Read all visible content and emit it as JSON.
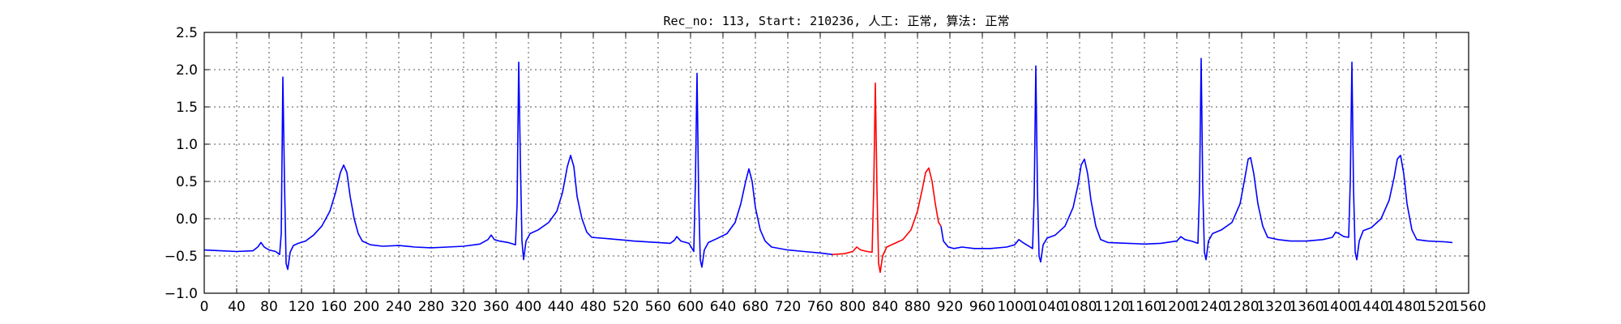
{
  "chart_data": {
    "type": "line",
    "title": "Rec_no: 113, Start: 210236, 人工: 正常, 算法: 正常",
    "xlabel": "",
    "ylabel": "",
    "xlim": [
      0,
      1560
    ],
    "ylim": [
      -1.0,
      2.5
    ],
    "grid": true,
    "yticks": [
      "2.5",
      "2.0",
      "1.5",
      "1.0",
      "0.5",
      "0.0",
      "−0.5",
      "−1.0"
    ],
    "ytick_values": [
      2.5,
      2.0,
      1.5,
      1.0,
      0.5,
      0.0,
      -0.5,
      -1.0
    ],
    "xtick_values": [
      0,
      40,
      80,
      120,
      160,
      200,
      240,
      280,
      320,
      360,
      400,
      440,
      480,
      520,
      560,
      600,
      640,
      680,
      720,
      760,
      800,
      840,
      880,
      920,
      960,
      1000,
      1040,
      1080,
      1120,
      1160,
      1200,
      1240,
      1280,
      1320,
      1360,
      1400,
      1440,
      1480,
      1520,
      1560
    ],
    "xtick_labels": [
      "0",
      "40",
      "80",
      "120",
      "160",
      "200",
      "240",
      "280",
      "320",
      "360",
      "400",
      "440",
      "480",
      "520",
      "560",
      "600",
      "640",
      "680",
      "720",
      "760",
      "800",
      "840",
      "880",
      "920",
      "960",
      "1000",
      "1040",
      "1080",
      "1120",
      "1160",
      "1200",
      "1240",
      "1280",
      "1320",
      "1360",
      "1400",
      "1440",
      "1480",
      "1520",
      "1560"
    ],
    "series": [
      {
        "color": "#0000ff",
        "points": [
          [
            0,
            -0.42
          ],
          [
            20,
            -0.43
          ],
          [
            40,
            -0.44
          ],
          [
            60,
            -0.43
          ],
          [
            66,
            -0.38
          ],
          [
            70,
            -0.32
          ],
          [
            74,
            -0.38
          ],
          [
            80,
            -0.42
          ],
          [
            88,
            -0.44
          ],
          [
            93,
            -0.48
          ],
          [
            95,
            -0.2
          ],
          [
            97,
            1.9
          ],
          [
            99,
            0.5
          ],
          [
            101,
            -0.6
          ],
          [
            103,
            -0.68
          ],
          [
            106,
            -0.45
          ],
          [
            110,
            -0.36
          ],
          [
            116,
            -0.33
          ],
          [
            125,
            -0.3
          ],
          [
            135,
            -0.22
          ],
          [
            145,
            -0.1
          ],
          [
            155,
            0.1
          ],
          [
            162,
            0.35
          ],
          [
            168,
            0.62
          ],
          [
            172,
            0.72
          ],
          [
            176,
            0.62
          ],
          [
            180,
            0.3
          ],
          [
            185,
            0.0
          ],
          [
            190,
            -0.2
          ],
          [
            195,
            -0.3
          ],
          [
            205,
            -0.35
          ],
          [
            220,
            -0.37
          ],
          [
            240,
            -0.36
          ],
          [
            260,
            -0.38
          ],
          [
            280,
            -0.39
          ],
          [
            300,
            -0.38
          ],
          [
            320,
            -0.37
          ],
          [
            340,
            -0.34
          ],
          [
            350,
            -0.28
          ],
          [
            354,
            -0.22
          ],
          [
            358,
            -0.28
          ],
          [
            364,
            -0.3
          ],
          [
            375,
            -0.32
          ],
          [
            384,
            -0.35
          ],
          [
            386,
            0.2
          ],
          [
            388,
            2.1
          ],
          [
            390,
            0.8
          ],
          [
            392,
            -0.3
          ],
          [
            394,
            -0.55
          ],
          [
            397,
            -0.3
          ],
          [
            402,
            -0.2
          ],
          [
            412,
            -0.15
          ],
          [
            425,
            -0.05
          ],
          [
            435,
            0.1
          ],
          [
            442,
            0.35
          ],
          [
            448,
            0.7
          ],
          [
            452,
            0.85
          ],
          [
            456,
            0.7
          ],
          [
            460,
            0.3
          ],
          [
            466,
            0.0
          ],
          [
            472,
            -0.18
          ],
          [
            478,
            -0.25
          ],
          [
            500,
            -0.27
          ],
          [
            530,
            -0.3
          ],
          [
            560,
            -0.32
          ],
          [
            575,
            -0.33
          ],
          [
            580,
            -0.29
          ],
          [
            583,
            -0.24
          ],
          [
            588,
            -0.3
          ],
          [
            598,
            -0.33
          ],
          [
            604,
            -0.44
          ],
          [
            606,
            0.5
          ],
          [
            608,
            1.95
          ],
          [
            610,
            0.3
          ],
          [
            612,
            -0.55
          ],
          [
            614,
            -0.65
          ],
          [
            617,
            -0.42
          ],
          [
            622,
            -0.32
          ],
          [
            632,
            -0.27
          ],
          [
            645,
            -0.2
          ],
          [
            655,
            -0.05
          ],
          [
            662,
            0.2
          ],
          [
            668,
            0.5
          ],
          [
            672,
            0.67
          ],
          [
            676,
            0.5
          ],
          [
            680,
            0.15
          ],
          [
            686,
            -0.15
          ],
          [
            692,
            -0.3
          ],
          [
            700,
            -0.38
          ],
          [
            720,
            -0.42
          ],
          [
            740,
            -0.44
          ],
          [
            760,
            -0.46
          ],
          [
            775,
            -0.48
          ]
        ]
      },
      {
        "color": "#ff0000",
        "points": [
          [
            775,
            -0.48
          ],
          [
            790,
            -0.47
          ],
          [
            800,
            -0.44
          ],
          [
            805,
            -0.38
          ],
          [
            810,
            -0.42
          ],
          [
            818,
            -0.44
          ],
          [
            824,
            -0.45
          ],
          [
            826,
            0.4
          ],
          [
            828,
            1.82
          ],
          [
            830,
            0.4
          ],
          [
            832,
            -0.6
          ],
          [
            834,
            -0.72
          ],
          [
            837,
            -0.5
          ],
          [
            842,
            -0.38
          ],
          [
            852,
            -0.33
          ],
          [
            862,
            -0.28
          ],
          [
            872,
            -0.15
          ],
          [
            880,
            0.1
          ],
          [
            886,
            0.4
          ],
          [
            890,
            0.62
          ],
          [
            894,
            0.68
          ],
          [
            898,
            0.5
          ],
          [
            902,
            0.2
          ],
          [
            906,
            -0.05
          ],
          [
            909,
            -0.1
          ]
        ]
      },
      {
        "color": "#0000ff",
        "points": [
          [
            909,
            -0.1
          ],
          [
            912,
            -0.3
          ],
          [
            918,
            -0.38
          ],
          [
            925,
            -0.4
          ],
          [
            935,
            -0.38
          ],
          [
            950,
            -0.4
          ],
          [
            970,
            -0.4
          ],
          [
            990,
            -0.38
          ],
          [
            1000,
            -0.35
          ],
          [
            1005,
            -0.28
          ],
          [
            1010,
            -0.32
          ],
          [
            1016,
            -0.36
          ],
          [
            1022,
            -0.4
          ],
          [
            1024,
            0.3
          ],
          [
            1026,
            2.05
          ],
          [
            1028,
            0.4
          ],
          [
            1030,
            -0.5
          ],
          [
            1032,
            -0.58
          ],
          [
            1035,
            -0.35
          ],
          [
            1040,
            -0.26
          ],
          [
            1050,
            -0.22
          ],
          [
            1062,
            -0.1
          ],
          [
            1072,
            0.15
          ],
          [
            1078,
            0.45
          ],
          [
            1082,
            0.72
          ],
          [
            1086,
            0.8
          ],
          [
            1090,
            0.6
          ],
          [
            1094,
            0.25
          ],
          [
            1100,
            -0.1
          ],
          [
            1106,
            -0.28
          ],
          [
            1115,
            -0.32
          ],
          [
            1140,
            -0.33
          ],
          [
            1160,
            -0.34
          ],
          [
            1180,
            -0.33
          ],
          [
            1200,
            -0.3
          ],
          [
            1205,
            -0.24
          ],
          [
            1210,
            -0.28
          ],
          [
            1218,
            -0.3
          ],
          [
            1226,
            -0.33
          ],
          [
            1228,
            0.4
          ],
          [
            1230,
            2.15
          ],
          [
            1232,
            0.4
          ],
          [
            1234,
            -0.45
          ],
          [
            1236,
            -0.55
          ],
          [
            1239,
            -0.3
          ],
          [
            1244,
            -0.2
          ],
          [
            1255,
            -0.15
          ],
          [
            1268,
            -0.05
          ],
          [
            1278,
            0.2
          ],
          [
            1284,
            0.55
          ],
          [
            1288,
            0.8
          ],
          [
            1291,
            0.82
          ],
          [
            1295,
            0.6
          ],
          [
            1300,
            0.2
          ],
          [
            1306,
            -0.1
          ],
          [
            1312,
            -0.25
          ],
          [
            1325,
            -0.28
          ],
          [
            1340,
            -0.3
          ],
          [
            1360,
            -0.3
          ],
          [
            1380,
            -0.28
          ],
          [
            1392,
            -0.25
          ],
          [
            1396,
            -0.18
          ],
          [
            1400,
            -0.2
          ],
          [
            1406,
            -0.24
          ],
          [
            1412,
            -0.25
          ],
          [
            1414,
            0.5
          ],
          [
            1416,
            2.1
          ],
          [
            1418,
            0.4
          ],
          [
            1420,
            -0.45
          ],
          [
            1422,
            -0.55
          ],
          [
            1425,
            -0.3
          ],
          [
            1430,
            -0.16
          ],
          [
            1440,
            -0.12
          ],
          [
            1452,
            0.0
          ],
          [
            1462,
            0.25
          ],
          [
            1468,
            0.55
          ],
          [
            1472,
            0.8
          ],
          [
            1476,
            0.85
          ],
          [
            1480,
            0.6
          ],
          [
            1484,
            0.2
          ],
          [
            1490,
            -0.15
          ],
          [
            1496,
            -0.28
          ],
          [
            1510,
            -0.3
          ],
          [
            1530,
            -0.31
          ],
          [
            1540,
            -0.32
          ]
        ]
      }
    ]
  }
}
